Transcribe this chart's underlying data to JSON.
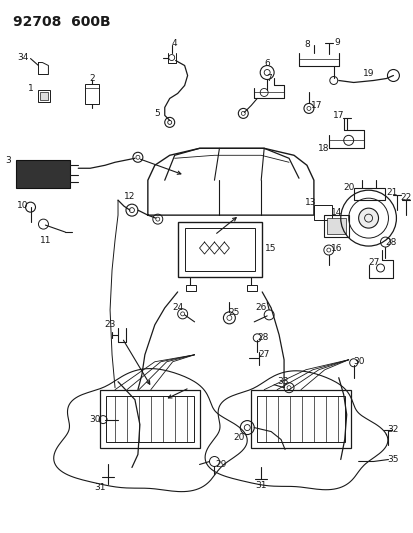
{
  "title": "92708  600B",
  "bg_color": "#ffffff",
  "line_color": "#1a1a1a",
  "title_fontsize": 10,
  "label_fontsize": 6.5,
  "fig_width": 4.14,
  "fig_height": 5.33,
  "dpi": 100
}
